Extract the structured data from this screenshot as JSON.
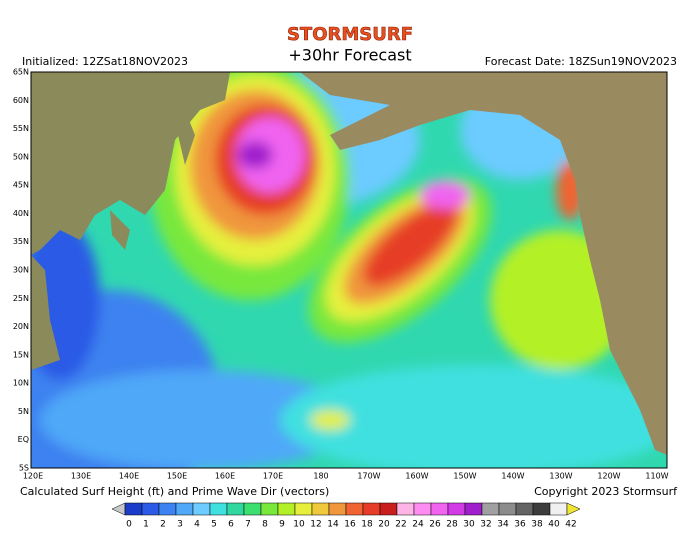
{
  "header": {
    "brand": "STORMSURF",
    "title": "+30hr Forecast",
    "initialized": "Initialized: 12ZSat18NOV2023",
    "forecast_date": "Forecast Date: 18ZSun19NOV2023"
  },
  "map": {
    "lat_labels": [
      "65N",
      "60N",
      "55N",
      "50N",
      "45N",
      "40N",
      "35N",
      "30N",
      "25N",
      "20N",
      "15N",
      "10N",
      "5N",
      "EQ",
      "5S"
    ],
    "lon_labels": [
      "120E",
      "130E",
      "140E",
      "150E",
      "160E",
      "170E",
      "180",
      "170W",
      "160W",
      "150W",
      "140W",
      "130W",
      "120W",
      "110W"
    ]
  },
  "footer": {
    "caption": "Calculated Surf Height (ft) and Prime Wave Dir (vectors)",
    "copyright": "Copyright 2023 Stormsurf"
  },
  "legend": [
    {
      "value": 0,
      "color": "#1a3cc8"
    },
    {
      "value": 1,
      "color": "#2a5ae6"
    },
    {
      "value": 2,
      "color": "#3c82f0"
    },
    {
      "value": 3,
      "color": "#50a8f8"
    },
    {
      "value": 4,
      "color": "#6ccbff"
    },
    {
      "value": 5,
      "color": "#40e0e0"
    },
    {
      "value": 6,
      "color": "#30d8a0"
    },
    {
      "value": 7,
      "color": "#3ce070"
    },
    {
      "value": 8,
      "color": "#78e83c"
    },
    {
      "value": 9,
      "color": "#b4f028"
    },
    {
      "value": 10,
      "color": "#e6f03c"
    },
    {
      "value": 12,
      "color": "#f0c83c"
    },
    {
      "value": 14,
      "color": "#f0963c"
    },
    {
      "value": 16,
      "color": "#f06432"
    },
    {
      "value": 18,
      "color": "#e63c28"
    },
    {
      "value": 20,
      "color": "#c81e1e"
    },
    {
      "value": 22,
      "color": "#ffb4e6"
    },
    {
      "value": 24,
      "color": "#ff8cf0"
    },
    {
      "value": 26,
      "color": "#f064f0"
    },
    {
      "value": 28,
      "color": "#d23ce6"
    },
    {
      "value": 30,
      "color": "#a01ecc"
    },
    {
      "value": 32,
      "color": "#a0a0a0"
    },
    {
      "value": 34,
      "color": "#8c8c8c"
    },
    {
      "value": 36,
      "color": "#646464"
    },
    {
      "value": 38,
      "color": "#3c3c3c"
    },
    {
      "value": 40,
      "color": "#f0f0f0"
    },
    {
      "value": 42,
      "color": "#f0e632"
    }
  ]
}
